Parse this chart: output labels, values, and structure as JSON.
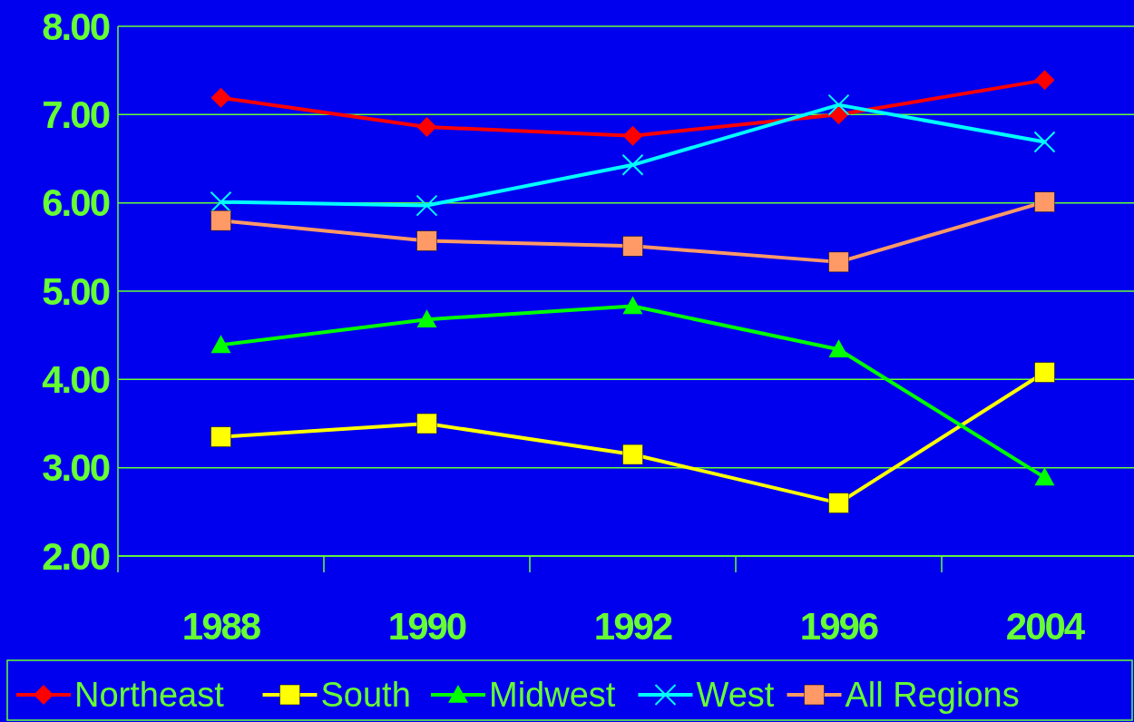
{
  "chart_data": {
    "type": "line",
    "categories": [
      "1988",
      "1990",
      "1992",
      "1996",
      "2004"
    ],
    "ylim": [
      2,
      8
    ],
    "yticks": [
      {
        "value": 2,
        "label": "2.00"
      },
      {
        "value": 3,
        "label": "3.00"
      },
      {
        "value": 4,
        "label": "4.00"
      },
      {
        "value": 5,
        "label": "5.00"
      },
      {
        "value": 6,
        "label": "6.00"
      },
      {
        "value": 7,
        "label": "7.00"
      },
      {
        "value": 8,
        "label": "8.00"
      }
    ],
    "grid": "y",
    "legend": "bottom",
    "series": [
      {
        "name": "Northeast",
        "color": "#ff0000",
        "marker": "diamond",
        "values": [
          7.19,
          6.86,
          6.76,
          7.0,
          7.39
        ]
      },
      {
        "name": "South",
        "color": "#ffff00",
        "marker": "square",
        "values": [
          3.35,
          3.5,
          3.15,
          2.6,
          4.08
        ]
      },
      {
        "name": "Midwest",
        "color": "#00ff00",
        "marker": "triangle",
        "values": [
          4.39,
          4.68,
          4.83,
          4.34,
          2.89
        ]
      },
      {
        "name": "West",
        "color": "#00ffff",
        "marker": "cross",
        "values": [
          6.01,
          5.97,
          6.43,
          7.11,
          6.69
        ]
      },
      {
        "name": "All Regions",
        "color": "#ff9966",
        "marker": "square",
        "values": [
          5.8,
          5.57,
          5.51,
          5.33,
          6.01
        ]
      }
    ]
  }
}
